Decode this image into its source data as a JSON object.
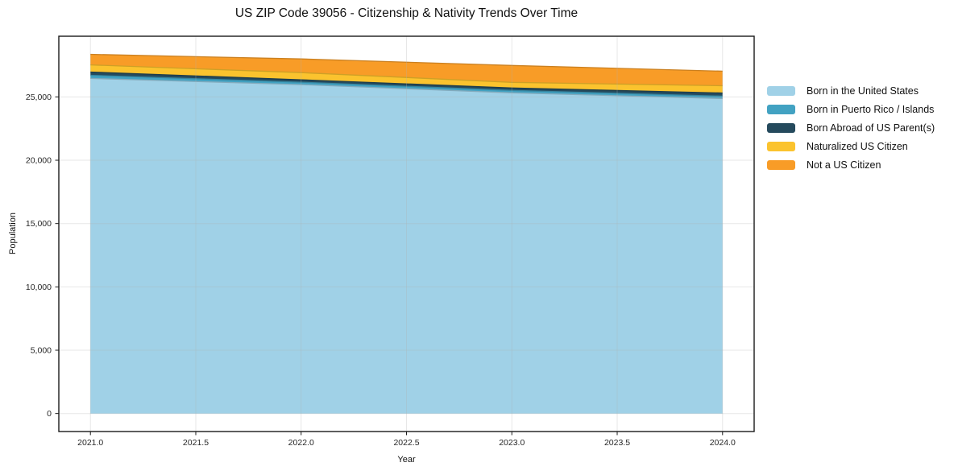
{
  "chart_data": {
    "type": "area",
    "stacked": true,
    "title": "US ZIP Code 39056 - Citizenship & Nativity Trends Over Time",
    "xlabel": "Year",
    "ylabel": "Population",
    "x": [
      2021,
      2022,
      2023,
      2024
    ],
    "series": [
      {
        "name": "Born in the United States",
        "color": "#A0D1E7",
        "values": [
          26460,
          25970,
          25320,
          24870
        ]
      },
      {
        "name": "Born in Puerto Rico / Islands",
        "color": "#42A2C2",
        "values": [
          250,
          190,
          190,
          190
        ]
      },
      {
        "name": "Born Abroad of US Parent(s)",
        "color": "#254A5D",
        "values": [
          250,
          190,
          190,
          250
        ]
      },
      {
        "name": "Naturalized US Citizen",
        "color": "#FBC32E",
        "values": [
          570,
          570,
          450,
          570
        ]
      },
      {
        "name": "Not a US Citizen",
        "color": "#F89C27",
        "values": [
          830,
          1080,
          1330,
          1150
        ]
      }
    ],
    "xlim": [
      2020.85,
      2024.15
    ],
    "ylim": [
      -1420,
      29790
    ],
    "x_ticks": [
      {
        "value": 2021.0,
        "label": "2021.0"
      },
      {
        "value": 2021.5,
        "label": "2021.5"
      },
      {
        "value": 2022.0,
        "label": "2022.0"
      },
      {
        "value": 2022.5,
        "label": "2022.5"
      },
      {
        "value": 2023.0,
        "label": "2023.0"
      },
      {
        "value": 2023.5,
        "label": "2023.5"
      },
      {
        "value": 2024.0,
        "label": "2024.0"
      }
    ],
    "y_ticks": [
      {
        "value": 0,
        "label": "0"
      },
      {
        "value": 5000,
        "label": "5,000"
      },
      {
        "value": 10000,
        "label": "10,000"
      },
      {
        "value": 15000,
        "label": "15,000"
      },
      {
        "value": 20000,
        "label": "20,000"
      },
      {
        "value": 25000,
        "label": "25,000"
      }
    ],
    "grid": true,
    "legend_position": "right-outside",
    "colors": {
      "spine": "#1a1a1a",
      "grid": "#b0b0b0",
      "tick_text": "#262626",
      "background": "#ffffff"
    }
  }
}
